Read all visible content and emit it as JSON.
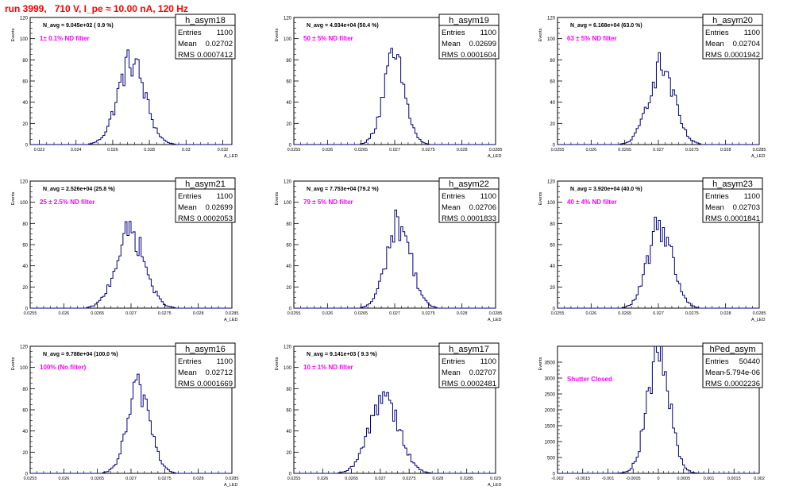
{
  "page": {
    "title": "run 3999,   710 V, I_pe ≈ 10.00 nA, 120 Hz"
  },
  "chart_data": [
    {
      "type": "histogram",
      "name": "h_asym18",
      "stats": {
        "entries_label": "Entries",
        "entries": "1100",
        "mean_label": "Mean",
        "mean": "0.02702",
        "rms_label": "RMS",
        "rms": "0.0007412"
      },
      "avg_label": "N_avg = 9.045e+02 ( 0.9 %)",
      "filter_label": "1± 0.1% ND filter",
      "ylabel": "Events",
      "xlabel": "A_LED",
      "xlim": [
        0.0215,
        0.0325
      ],
      "ylim": [
        0,
        120
      ],
      "xticks": [
        0.022,
        0.024,
        0.026,
        0.028,
        0.03,
        0.032
      ],
      "xtick_labels": [
        "0.022",
        "0.024",
        "0.026",
        "0.028",
        "0.03",
        "0.032"
      ],
      "yticks": [
        0,
        20,
        40,
        60,
        80,
        100,
        120
      ],
      "peak": 80,
      "center": 0.02702,
      "sigma": 0.00074
    },
    {
      "type": "histogram",
      "name": "h_asym19",
      "stats": {
        "entries_label": "Entries",
        "entries": "1100",
        "mean_label": "Mean",
        "mean": "0.02699",
        "rms_label": "RMS",
        "rms": "0.0001604"
      },
      "avg_label": "N_avg = 4.934e+04 (50.4 %)",
      "filter_label": "50 ± 5% ND filter",
      "ylabel": "Events",
      "xlabel": "A_LED",
      "xlim": [
        0.0255,
        0.0285
      ],
      "ylim": [
        0,
        120
      ],
      "xticks": [
        0.0255,
        0.026,
        0.0265,
        0.027,
        0.0275,
        0.028,
        0.0285
      ],
      "xtick_labels": [
        "0.0255",
        "0.026",
        "0.0265",
        "0.027",
        "0.0275",
        "0.028",
        "0.0285"
      ],
      "yticks": [
        0,
        20,
        40,
        60,
        80,
        100,
        120
      ],
      "peak": 82,
      "center": 0.02699,
      "sigma": 0.00016
    },
    {
      "type": "histogram",
      "name": "h_asym20",
      "stats": {
        "entries_label": "Entries",
        "entries": "1100",
        "mean_label": "Mean",
        "mean": "0.02704",
        "rms_label": "RMS",
        "rms": "0.0001942"
      },
      "avg_label": "N_avg = 6.168e+04 (63.0 %)",
      "filter_label": "63 ± 5% ND filter",
      "ylabel": "Events",
      "xlabel": "A_LED",
      "xlim": [
        0.0255,
        0.0285
      ],
      "ylim": [
        0,
        120
      ],
      "xticks": [
        0.0255,
        0.026,
        0.0265,
        0.027,
        0.0275,
        0.028,
        0.0285
      ],
      "xtick_labels": [
        "0.0255",
        "0.026",
        "0.0265",
        "0.027",
        "0.0275",
        "0.028",
        "0.0285"
      ],
      "yticks": [
        0,
        20,
        40,
        60,
        80,
        100,
        120
      ],
      "peak": 75,
      "center": 0.02704,
      "sigma": 0.00019
    },
    {
      "type": "histogram",
      "name": "h_asym21",
      "stats": {
        "entries_label": "Entries",
        "entries": "1100",
        "mean_label": "Mean",
        "mean": "0.02699",
        "rms_label": "RMS",
        "rms": "0.0002053"
      },
      "avg_label": "N_avg = 2.526e+04 (25.8 %)",
      "filter_label": "25 ± 2.5% ND filter",
      "ylabel": "Events",
      "xlabel": "A_LED",
      "xlim": [
        0.0255,
        0.0285
      ],
      "ylim": [
        0,
        120
      ],
      "xticks": [
        0.0255,
        0.026,
        0.0265,
        0.027,
        0.0275,
        0.028,
        0.0285
      ],
      "xtick_labels": [
        "0.0255",
        "0.026",
        "0.0265",
        "0.027",
        "0.0275",
        "0.028",
        "0.0285"
      ],
      "yticks": [
        0,
        20,
        40,
        60,
        80,
        100,
        120
      ],
      "peak": 73,
      "center": 0.02699,
      "sigma": 0.00021
    },
    {
      "type": "histogram",
      "name": "h_asym22",
      "stats": {
        "entries_label": "Entries",
        "entries": "1100",
        "mean_label": "Mean",
        "mean": "0.02706",
        "rms_label": "RMS",
        "rms": "0.0001833"
      },
      "avg_label": "N_avg = 7.753e+04 (79.2 %)",
      "filter_label": "79 ± 5% ND filter",
      "ylabel": "Events",
      "xlabel": "A_LED",
      "xlim": [
        0.0255,
        0.0285
      ],
      "ylim": [
        0,
        120
      ],
      "xticks": [
        0.0255,
        0.026,
        0.0265,
        0.027,
        0.0275,
        0.028,
        0.0285
      ],
      "xtick_labels": [
        "0.0255",
        "0.026",
        "0.0265",
        "0.027",
        "0.0275",
        "0.028",
        "0.0285"
      ],
      "yticks": [
        0,
        20,
        40,
        60,
        80,
        100,
        120
      ],
      "peak": 82,
      "center": 0.02706,
      "sigma": 0.00018
    },
    {
      "type": "histogram",
      "name": "h_asym23",
      "stats": {
        "entries_label": "Entries",
        "entries": "1100",
        "mean_label": "Mean",
        "mean": "0.02703",
        "rms_label": "RMS",
        "rms": "0.0001841"
      },
      "avg_label": "N_avg = 3.920e+04 (40.0 %)",
      "filter_label": "40 ± 4% ND filter",
      "ylabel": "Events",
      "xlabel": "A_LED",
      "xlim": [
        0.0255,
        0.0285
      ],
      "ylim": [
        0,
        120
      ],
      "xticks": [
        0.0255,
        0.026,
        0.0265,
        0.027,
        0.0275,
        0.028,
        0.0285
      ],
      "xtick_labels": [
        "0.0255",
        "0.026",
        "0.0265",
        "0.027",
        "0.0275",
        "0.028",
        "0.0285"
      ],
      "yticks": [
        0,
        20,
        40,
        60,
        80,
        100,
        120
      ],
      "peak": 80,
      "center": 0.02703,
      "sigma": 0.00018
    },
    {
      "type": "histogram",
      "name": "h_asym16",
      "stats": {
        "entries_label": "Entries",
        "entries": "1100",
        "mean_label": "Mean",
        "mean": "0.02712",
        "rms_label": "RMS",
        "rms": "0.0001669"
      },
      "avg_label": "N_avg = 9.788e+04 (100.0 %)",
      "filter_label": "100% (No filter)",
      "ylabel": "Events",
      "xlabel": "A_LED",
      "xlim": [
        0.0255,
        0.0285
      ],
      "ylim": [
        0,
        120
      ],
      "xticks": [
        0.0255,
        0.026,
        0.0265,
        0.027,
        0.0275,
        0.028,
        0.0285
      ],
      "xtick_labels": [
        "0.0255",
        "0.026",
        "0.0265",
        "0.027",
        "0.0275",
        "0.028",
        "0.0285"
      ],
      "yticks": [
        0,
        20,
        40,
        60,
        80,
        100,
        120
      ],
      "peak": 82,
      "center": 0.02712,
      "sigma": 0.00017
    },
    {
      "type": "histogram",
      "name": "h_asym17",
      "stats": {
        "entries_label": "Entries",
        "entries": "1100",
        "mean_label": "Mean",
        "mean": "0.02707",
        "rms_label": "RMS",
        "rms": "0.0002481"
      },
      "avg_label": "N_avg = 9.141e+03 ( 9.3 %)",
      "filter_label": "10 ± 1% ND filter",
      "ylabel": "Events",
      "xlabel": "A_LED",
      "xlim": [
        0.0255,
        0.029
      ],
      "ylim": [
        0,
        120
      ],
      "xticks": [
        0.0255,
        0.026,
        0.0265,
        0.027,
        0.0275,
        0.028,
        0.0285,
        0.029
      ],
      "xtick_labels": [
        "0.0255",
        "0.026",
        "0.0265",
        "0.027",
        "0.0275",
        "0.028",
        "0.0285",
        "0.029"
      ],
      "yticks": [
        0,
        20,
        40,
        60,
        80,
        100,
        120
      ],
      "peak": 77,
      "center": 0.02707,
      "sigma": 0.00025
    },
    {
      "type": "histogram",
      "name": "hPed_asym",
      "stats": {
        "entries_label": "Entries",
        "entries": "50440",
        "mean_label": "Mean",
        "mean": "-5.794e-06",
        "rms_label": "RMS",
        "rms": "0.0002236"
      },
      "avg_label": "",
      "filter_label": "Shutter Closed",
      "ylabel": "Events",
      "xlabel": "",
      "xlim": [
        -0.002,
        0.002
      ],
      "ylim": [
        0,
        4000
      ],
      "xticks": [
        -0.002,
        -0.0015,
        -0.001,
        -0.0005,
        0,
        0.0005,
        0.001,
        0.0015,
        0.002
      ],
      "xtick_labels": [
        "-0.002",
        "-0.0015",
        "-0.001",
        "-0.0005",
        "0",
        "0.0005",
        "0.001",
        "0.0015",
        "0.002"
      ],
      "yticks": [
        0,
        500,
        1000,
        1500,
        2000,
        2500,
        3000,
        3500
      ],
      "peak": 3800,
      "center": 0.0,
      "sigma": 0.00022
    }
  ]
}
